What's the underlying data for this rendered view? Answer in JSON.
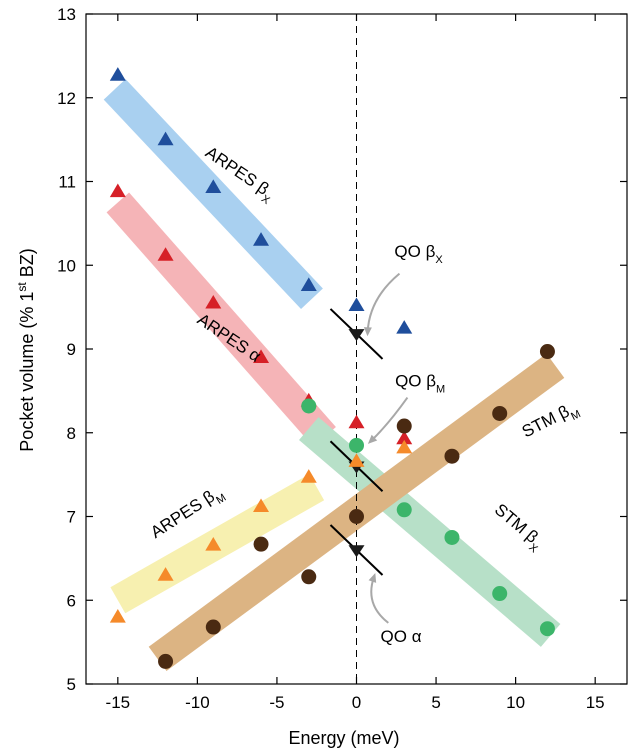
{
  "chart_data": {
    "type": "scatter",
    "xlabel": "Energy (meV)",
    "ylabel_main": "Pocket volume (% 1",
    "ylabel_sup": "st",
    "ylabel_tail": " BZ)",
    "xlim": [
      -17,
      17
    ],
    "ylim": [
      5,
      13
    ],
    "xticks": [
      -15,
      -10,
      -5,
      0,
      5,
      10,
      15
    ],
    "yticks": [
      5,
      6,
      7,
      8,
      9,
      10,
      11,
      12,
      13
    ],
    "grid": false,
    "colors": {
      "blue": "#1f4e9c",
      "red": "#d62027",
      "orange": "#f58a2a",
      "green": "#3cb56a",
      "brown": "#4a2a12",
      "band_blue": "#a9d0f0",
      "band_red": "#f5b4b7",
      "band_yellow": "#f7f0b0",
      "band_green": "#b7e0c8",
      "band_brown": "#dcb483"
    },
    "series": [
      {
        "name": "ARPES βX",
        "marker": "triangle-up",
        "color": "#1f4e9c",
        "x": [
          -15,
          -12,
          -9,
          -6,
          -3,
          0,
          3
        ],
        "y": [
          12.27,
          11.5,
          10.93,
          10.3,
          9.76,
          9.52,
          9.25
        ]
      },
      {
        "name": "ARPES α",
        "marker": "triangle-up",
        "color": "#d62027",
        "x": [
          -15,
          -12,
          -9,
          -6,
          -3,
          0,
          3
        ],
        "y": [
          10.88,
          10.12,
          9.55,
          8.9,
          8.38,
          8.12,
          7.93
        ]
      },
      {
        "name": "ARPES βM",
        "marker": "triangle-up",
        "color": "#f58a2a",
        "x": [
          -15,
          -12,
          -9,
          -6,
          -3,
          0,
          3
        ],
        "y": [
          5.8,
          6.3,
          6.66,
          7.12,
          7.47,
          7.66,
          7.82
        ]
      },
      {
        "name": "STM βX",
        "marker": "circle",
        "color": "#3cb56a",
        "x": [
          -3,
          0,
          3,
          6,
          9,
          12
        ],
        "y": [
          8.32,
          7.85,
          7.08,
          6.75,
          6.08,
          5.66
        ]
      },
      {
        "name": "STM βM",
        "marker": "circle",
        "color": "#4a2a12",
        "x": [
          -12,
          -9,
          -6,
          -3,
          0,
          3,
          6,
          9,
          12
        ],
        "y": [
          5.27,
          5.68,
          6.67,
          6.28,
          7.0,
          8.08,
          7.72,
          8.23,
          8.97
        ]
      }
    ],
    "qo_points": [
      {
        "name": "QO βX",
        "x": 0,
        "y": 9.18
      },
      {
        "name": "QO βM",
        "x": 0,
        "y": 7.6
      },
      {
        "name": "QO α",
        "x": 0,
        "y": 6.6
      }
    ],
    "bands": [
      {
        "name": "ARPES βX",
        "color": "#a9d0f0",
        "x1": -15.2,
        "y1": 12.1,
        "x2": -2.8,
        "y2": 9.6
      },
      {
        "name": "ARPES α",
        "color": "#f5b4b7",
        "x1": -15.0,
        "y1": 10.75,
        "x2": -2.0,
        "y2": 7.95
      },
      {
        "name": "ARPES βM",
        "color": "#f7f0b0",
        "x1": -15.0,
        "y1": 6.0,
        "x2": -2.5,
        "y2": 7.35
      },
      {
        "name": "STM βX",
        "color": "#b7e0c8",
        "x1": -3.0,
        "y1": 8.05,
        "x2": 12.2,
        "y2": 5.58
      },
      {
        "name": "STM βM",
        "color": "#dcb483",
        "x1": -12.5,
        "y1": 5.3,
        "x2": 12.5,
        "y2": 8.8
      }
    ],
    "band_labels": [
      {
        "main": "ARPES β",
        "sub": "X",
        "x": -7.5,
        "y": 11.05,
        "angle": 34
      },
      {
        "main": "ARPES α",
        "sub": "",
        "x": -8.2,
        "y": 9.08,
        "angle": 34
      },
      {
        "main": "ARPES β",
        "sub": "M",
        "x": -10.5,
        "y": 7.0,
        "angle": -33
      },
      {
        "main": "STM β",
        "sub": "X",
        "x": 10.0,
        "y": 6.84,
        "angle": 40
      },
      {
        "main": "STM β",
        "sub": "M",
        "x": 12.3,
        "y": 8.1,
        "angle": -27
      }
    ],
    "callouts": [
      {
        "main": "QO β",
        "sub": "X",
        "x": 3.9,
        "y": 10.1
      },
      {
        "main": "QO β",
        "sub": "M",
        "x": 4.0,
        "y": 8.55
      },
      {
        "main": "QO α",
        "sub": "",
        "x": 2.8,
        "y": 5.5
      }
    ]
  }
}
